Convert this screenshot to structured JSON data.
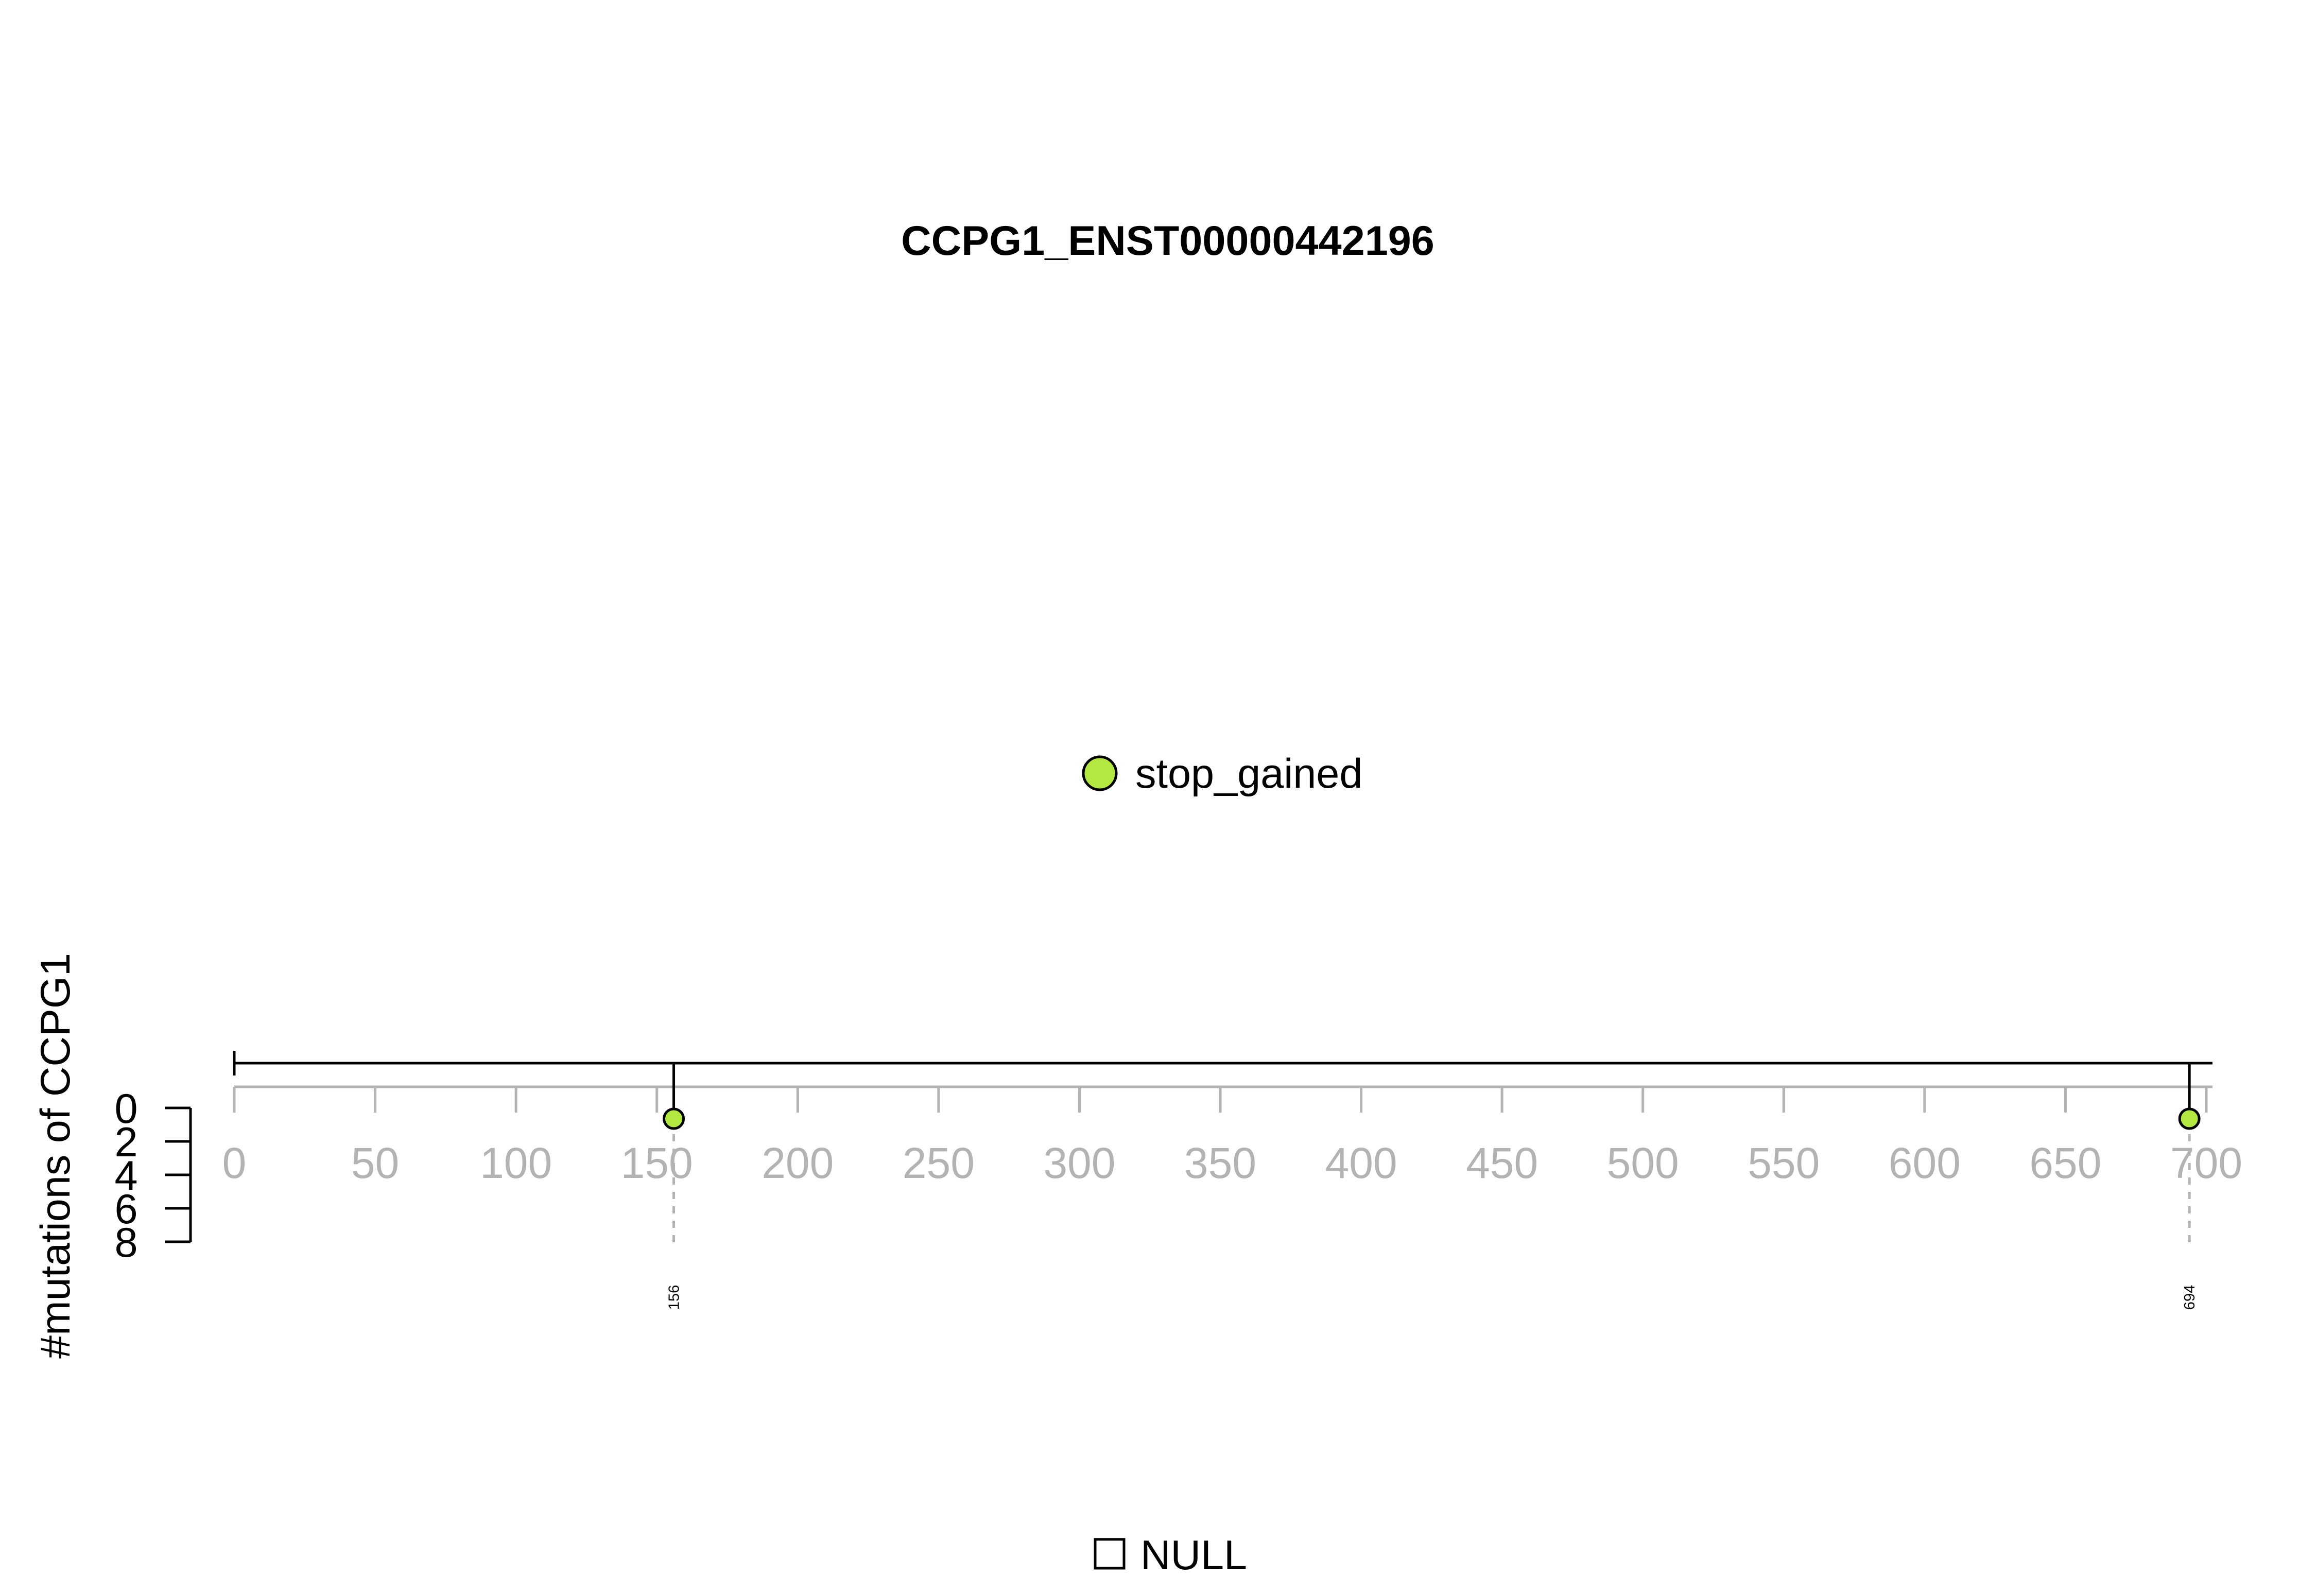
{
  "chart_data": {
    "type": "lollipop",
    "title": "CCPG1_ENST00000442196",
    "ylabel": "#mutations of CCPG1",
    "y_ticks": [
      "0",
      "2",
      "4",
      "6",
      "8"
    ],
    "y_range": [
      0,
      8
    ],
    "x_range": [
      0,
      700
    ],
    "x_ticks": [
      "0",
      "50",
      "100",
      "150",
      "200",
      "250",
      "300",
      "350",
      "400",
      "450",
      "500",
      "550",
      "600",
      "650",
      "700"
    ],
    "protein_length": 700,
    "mutations": [
      {
        "position": 156,
        "count": 1,
        "type": "stop_gained",
        "label": "156"
      },
      {
        "position": 694,
        "count": 1,
        "type": "stop_gained",
        "label": "694"
      }
    ],
    "legend_top": [
      {
        "label": "stop_gained",
        "color": "#b2e83f"
      }
    ],
    "legend_bottom": [
      {
        "label": "NULL",
        "color": "#ffffff"
      }
    ],
    "colors": {
      "stop_gained": "#b2e83f",
      "axis_gray": "#b3b3b3",
      "line": "#000000"
    }
  }
}
